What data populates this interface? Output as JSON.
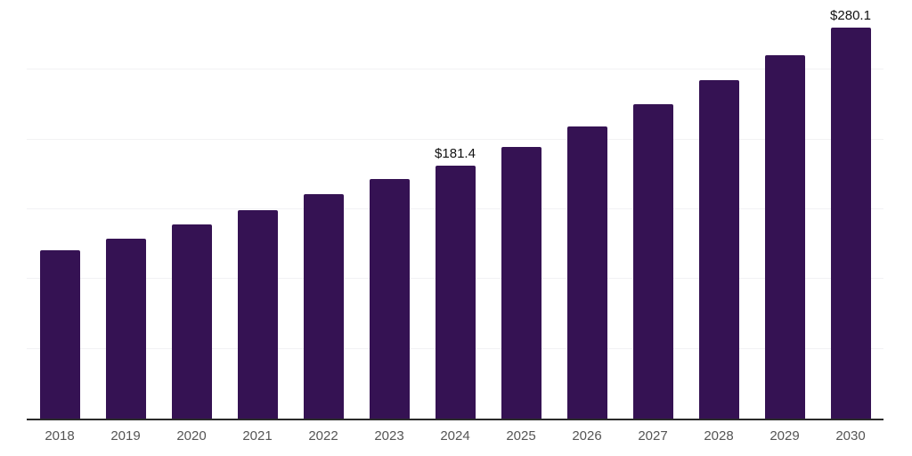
{
  "chart_data": {
    "type": "bar",
    "title": "",
    "xlabel": "",
    "ylabel": "",
    "categories": [
      "2018",
      "2019",
      "2020",
      "2021",
      "2022",
      "2023",
      "2024",
      "2025",
      "2026",
      "2027",
      "2028",
      "2029",
      "2030"
    ],
    "values": [
      120.6,
      129.2,
      139.0,
      149.5,
      161.0,
      171.5,
      181.4,
      195.0,
      209.7,
      225.4,
      242.3,
      260.5,
      280.1
    ],
    "data_labels": [
      "",
      "",
      "",
      "",
      "",
      "",
      "$181.4",
      "",
      "",
      "",
      "",
      "",
      "$280.1"
    ],
    "ylim": [
      0,
      300
    ],
    "gridline_values": [
      50,
      100,
      150,
      200,
      250,
      300
    ],
    "legend": "none",
    "grid": "horizontal",
    "colors": {
      "bar": "#351253",
      "axis_line": "#2b2b2b",
      "gridline": "#f2f2f4",
      "data_label_text": "#111111",
      "tick_label_text": "#555555",
      "background": "#ffffff"
    }
  }
}
